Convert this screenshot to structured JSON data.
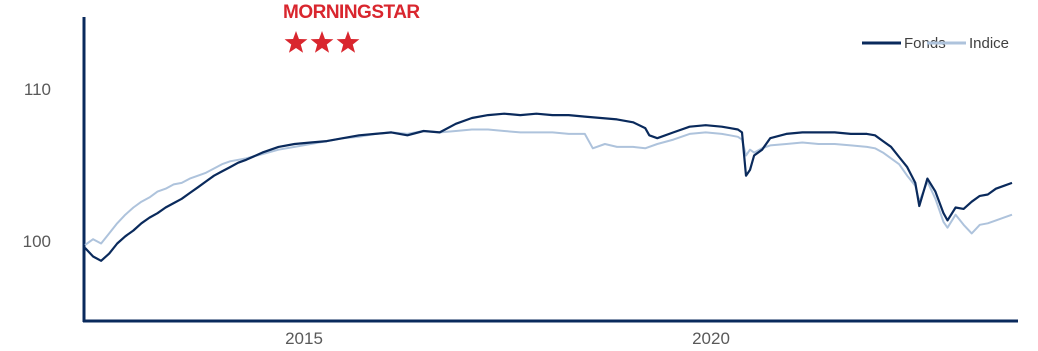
{
  "logo": {
    "text": "MORNINGSTAR",
    "rating_stars": 3,
    "color": "#d9262e"
  },
  "chart_data": {
    "type": "line",
    "title": "",
    "xlabel": "",
    "ylabel": "",
    "x_ticks": [
      "2015",
      "2020"
    ],
    "y_ticks": [
      "100",
      "110"
    ],
    "xlim": [
      2012.0,
      2023.5
    ],
    "ylim": [
      95,
      116
    ],
    "legend_position": "top-right",
    "grid": false,
    "series": [
      {
        "name": "Fonds",
        "color": "#0a2a5c",
        "points": [
          [
            2012.0,
            100.0
          ],
          [
            2012.1,
            99.4
          ],
          [
            2012.2,
            99.1
          ],
          [
            2012.3,
            99.6
          ],
          [
            2012.4,
            100.3
          ],
          [
            2012.5,
            100.8
          ],
          [
            2012.6,
            101.2
          ],
          [
            2012.7,
            101.7
          ],
          [
            2012.8,
            102.1
          ],
          [
            2012.9,
            102.4
          ],
          [
            2013.0,
            102.8
          ],
          [
            2013.1,
            103.1
          ],
          [
            2013.2,
            103.4
          ],
          [
            2013.3,
            103.8
          ],
          [
            2013.4,
            104.2
          ],
          [
            2013.5,
            104.6
          ],
          [
            2013.6,
            105.0
          ],
          [
            2013.7,
            105.3
          ],
          [
            2013.8,
            105.6
          ],
          [
            2013.9,
            105.9
          ],
          [
            2014.0,
            106.1
          ],
          [
            2014.2,
            106.6
          ],
          [
            2014.4,
            107.0
          ],
          [
            2014.6,
            107.2
          ],
          [
            2014.8,
            107.3
          ],
          [
            2015.0,
            107.4
          ],
          [
            2015.2,
            107.6
          ],
          [
            2015.4,
            107.8
          ],
          [
            2015.6,
            107.9
          ],
          [
            2015.8,
            108.0
          ],
          [
            2016.0,
            107.8
          ],
          [
            2016.2,
            108.1
          ],
          [
            2016.4,
            108.0
          ],
          [
            2016.6,
            108.6
          ],
          [
            2016.8,
            109.0
          ],
          [
            2017.0,
            109.2
          ],
          [
            2017.2,
            109.3
          ],
          [
            2017.4,
            109.2
          ],
          [
            2017.6,
            109.3
          ],
          [
            2017.8,
            109.2
          ],
          [
            2018.0,
            109.2
          ],
          [
            2018.2,
            109.1
          ],
          [
            2018.4,
            109.0
          ],
          [
            2018.6,
            108.9
          ],
          [
            2018.8,
            108.7
          ],
          [
            2018.95,
            108.3
          ],
          [
            2019.0,
            107.8
          ],
          [
            2019.1,
            107.6
          ],
          [
            2019.3,
            108.0
          ],
          [
            2019.5,
            108.4
          ],
          [
            2019.7,
            108.5
          ],
          [
            2019.9,
            108.4
          ],
          [
            2020.0,
            108.3
          ],
          [
            2020.1,
            108.2
          ],
          [
            2020.15,
            108.0
          ],
          [
            2020.2,
            105.0
          ],
          [
            2020.25,
            105.4
          ],
          [
            2020.3,
            106.4
          ],
          [
            2020.4,
            106.8
          ],
          [
            2020.5,
            107.6
          ],
          [
            2020.7,
            107.9
          ],
          [
            2020.9,
            108.0
          ],
          [
            2021.1,
            108.0
          ],
          [
            2021.3,
            108.0
          ],
          [
            2021.5,
            107.9
          ],
          [
            2021.7,
            107.9
          ],
          [
            2021.8,
            107.8
          ],
          [
            2021.9,
            107.4
          ],
          [
            2022.0,
            107.0
          ],
          [
            2022.1,
            106.3
          ],
          [
            2022.2,
            105.6
          ],
          [
            2022.3,
            104.5
          ],
          [
            2022.35,
            102.9
          ],
          [
            2022.45,
            104.8
          ],
          [
            2022.55,
            103.9
          ],
          [
            2022.65,
            102.4
          ],
          [
            2022.7,
            101.9
          ],
          [
            2022.8,
            102.8
          ],
          [
            2022.9,
            102.7
          ],
          [
            2023.0,
            103.2
          ],
          [
            2023.1,
            103.6
          ],
          [
            2023.2,
            103.7
          ],
          [
            2023.3,
            104.1
          ],
          [
            2023.4,
            104.3
          ],
          [
            2023.5,
            104.5
          ]
        ]
      },
      {
        "name": "Indice",
        "color": "#aec3dc",
        "points": [
          [
            2012.0,
            100.2
          ],
          [
            2012.1,
            100.6
          ],
          [
            2012.2,
            100.3
          ],
          [
            2012.3,
            101.0
          ],
          [
            2012.4,
            101.7
          ],
          [
            2012.5,
            102.3
          ],
          [
            2012.6,
            102.8
          ],
          [
            2012.7,
            103.2
          ],
          [
            2012.8,
            103.5
          ],
          [
            2012.9,
            103.9
          ],
          [
            2013.0,
            104.1
          ],
          [
            2013.1,
            104.4
          ],
          [
            2013.2,
            104.5
          ],
          [
            2013.3,
            104.8
          ],
          [
            2013.4,
            105.0
          ],
          [
            2013.5,
            105.2
          ],
          [
            2013.6,
            105.5
          ],
          [
            2013.7,
            105.8
          ],
          [
            2013.8,
            106.0
          ],
          [
            2013.9,
            106.1
          ],
          [
            2014.0,
            106.2
          ],
          [
            2014.2,
            106.5
          ],
          [
            2014.4,
            106.8
          ],
          [
            2014.6,
            107.0
          ],
          [
            2014.8,
            107.2
          ],
          [
            2015.0,
            107.4
          ],
          [
            2015.2,
            107.6
          ],
          [
            2015.4,
            107.7
          ],
          [
            2015.6,
            107.9
          ],
          [
            2015.8,
            108.0
          ],
          [
            2016.0,
            107.9
          ],
          [
            2016.2,
            108.1
          ],
          [
            2016.4,
            108.0
          ],
          [
            2016.6,
            108.1
          ],
          [
            2016.8,
            108.2
          ],
          [
            2017.0,
            108.2
          ],
          [
            2017.2,
            108.1
          ],
          [
            2017.4,
            108.0
          ],
          [
            2017.6,
            108.0
          ],
          [
            2017.8,
            108.0
          ],
          [
            2018.0,
            107.9
          ],
          [
            2018.2,
            107.9
          ],
          [
            2018.3,
            106.9
          ],
          [
            2018.45,
            107.2
          ],
          [
            2018.6,
            107.0
          ],
          [
            2018.8,
            107.0
          ],
          [
            2018.95,
            106.9
          ],
          [
            2019.1,
            107.2
          ],
          [
            2019.3,
            107.5
          ],
          [
            2019.5,
            107.9
          ],
          [
            2019.7,
            108.0
          ],
          [
            2019.9,
            107.9
          ],
          [
            2020.0,
            107.8
          ],
          [
            2020.1,
            107.7
          ],
          [
            2020.15,
            107.5
          ],
          [
            2020.2,
            106.4
          ],
          [
            2020.25,
            106.8
          ],
          [
            2020.3,
            106.6
          ],
          [
            2020.4,
            106.9
          ],
          [
            2020.5,
            107.1
          ],
          [
            2020.7,
            107.2
          ],
          [
            2020.9,
            107.3
          ],
          [
            2021.1,
            107.2
          ],
          [
            2021.3,
            107.2
          ],
          [
            2021.5,
            107.1
          ],
          [
            2021.7,
            107.0
          ],
          [
            2021.8,
            106.9
          ],
          [
            2021.9,
            106.6
          ],
          [
            2022.0,
            106.2
          ],
          [
            2022.1,
            105.8
          ],
          [
            2022.2,
            105.0
          ],
          [
            2022.3,
            104.3
          ],
          [
            2022.35,
            103.2
          ],
          [
            2022.45,
            104.6
          ],
          [
            2022.55,
            103.4
          ],
          [
            2022.65,
            101.8
          ],
          [
            2022.7,
            101.4
          ],
          [
            2022.8,
            102.3
          ],
          [
            2022.9,
            101.6
          ],
          [
            2023.0,
            101.0
          ],
          [
            2023.1,
            101.6
          ],
          [
            2023.2,
            101.7
          ],
          [
            2023.3,
            101.9
          ],
          [
            2023.4,
            102.1
          ],
          [
            2023.5,
            102.3
          ]
        ]
      }
    ]
  }
}
